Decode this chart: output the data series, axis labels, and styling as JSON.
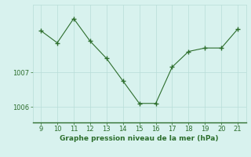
{
  "x": [
    9,
    10,
    11,
    12,
    13,
    14,
    15,
    16,
    17,
    18,
    19,
    20,
    21
  ],
  "y": [
    1008.2,
    1007.85,
    1008.55,
    1007.9,
    1007.4,
    1006.75,
    1006.1,
    1006.1,
    1007.15,
    1007.6,
    1007.7,
    1007.7,
    1008.25
  ],
  "line_color": "#2d6e2d",
  "marker_color": "#2d6e2d",
  "bg_color": "#d8f2ee",
  "grid_color": "#b8ddd8",
  "border_color": "#2d6e2d",
  "xlabel": "Graphe pression niveau de la mer (hPa)",
  "xlabel_color": "#2d6e2d",
  "xlabel_fontsize": 6.5,
  "tick_color": "#2d6e2d",
  "tick_fontsize": 6.0,
  "ylim": [
    1005.55,
    1008.95
  ],
  "yticks": [
    1006,
    1007
  ],
  "xlim": [
    8.5,
    21.5
  ],
  "xticks": [
    9,
    10,
    11,
    12,
    13,
    14,
    15,
    16,
    17,
    18,
    19,
    20,
    21
  ]
}
